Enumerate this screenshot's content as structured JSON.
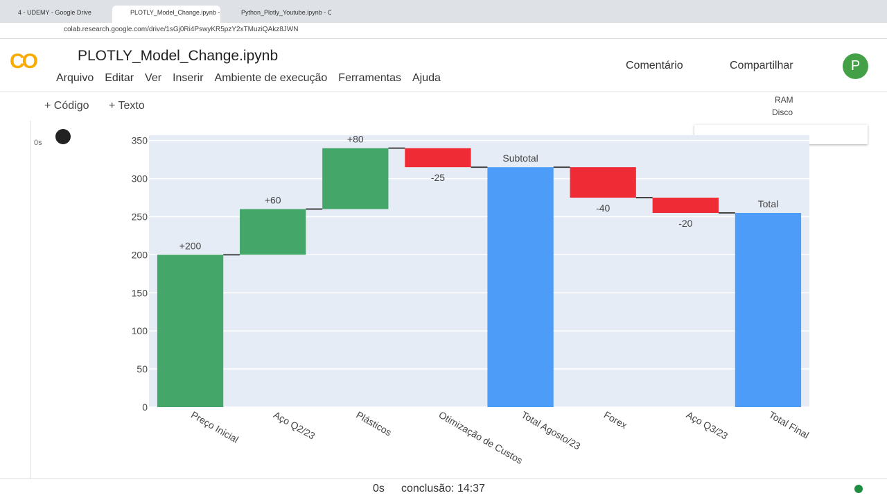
{
  "browser": {
    "tabs": [
      "4 - UDEMY - Google Drive",
      "PLOTLY_Model_Change.ipynb - C",
      "Python_Plotly_Youtube.ipynb - C"
    ],
    "url": "colab.research.google.com/drive/1sGj0Ri4PswyKR5pzY2xTMuziQAkz8JWN"
  },
  "colab": {
    "logo": "CO",
    "title": "PLOTLY_Model_Change.ipynb",
    "menu": [
      "Arquivo",
      "Editar",
      "Ver",
      "Inserir",
      "Ambiente de execução",
      "Ferramentas",
      "Ajuda"
    ],
    "comment": "Comentário",
    "share": "Compartilhar",
    "avatar": "P",
    "add_code": "Código",
    "add_text": "Texto",
    "ram": "RAM",
    "disk": "Disco",
    "cell_time": "0s"
  },
  "status": {
    "time": "0s",
    "completion": "conclusão: 14:37"
  },
  "chart_data": {
    "type": "waterfall",
    "categories": [
      "Preço Inicial",
      "Aço Q2/23",
      "Plásticos",
      "Otimização de Custos",
      "Total Agosto/23",
      "Forex",
      "Aço Q3/23",
      "Total Final"
    ],
    "measure": [
      "relative",
      "relative",
      "relative",
      "relative",
      "total",
      "relative",
      "relative",
      "total"
    ],
    "values": [
      200,
      60,
      80,
      -25,
      315,
      -40,
      -20,
      255
    ],
    "text": [
      "+200",
      "+60",
      "+80",
      "-25",
      "Subtotal",
      "-40",
      "-20",
      "Total"
    ],
    "increasing_color": "#45a66a",
    "decreasing_color": "#ef2b36",
    "total_color": "#4d9cf7",
    "ylim": [
      0,
      357
    ],
    "yticks": [
      0,
      50,
      100,
      150,
      200,
      250,
      300,
      350
    ],
    "grid": true
  }
}
